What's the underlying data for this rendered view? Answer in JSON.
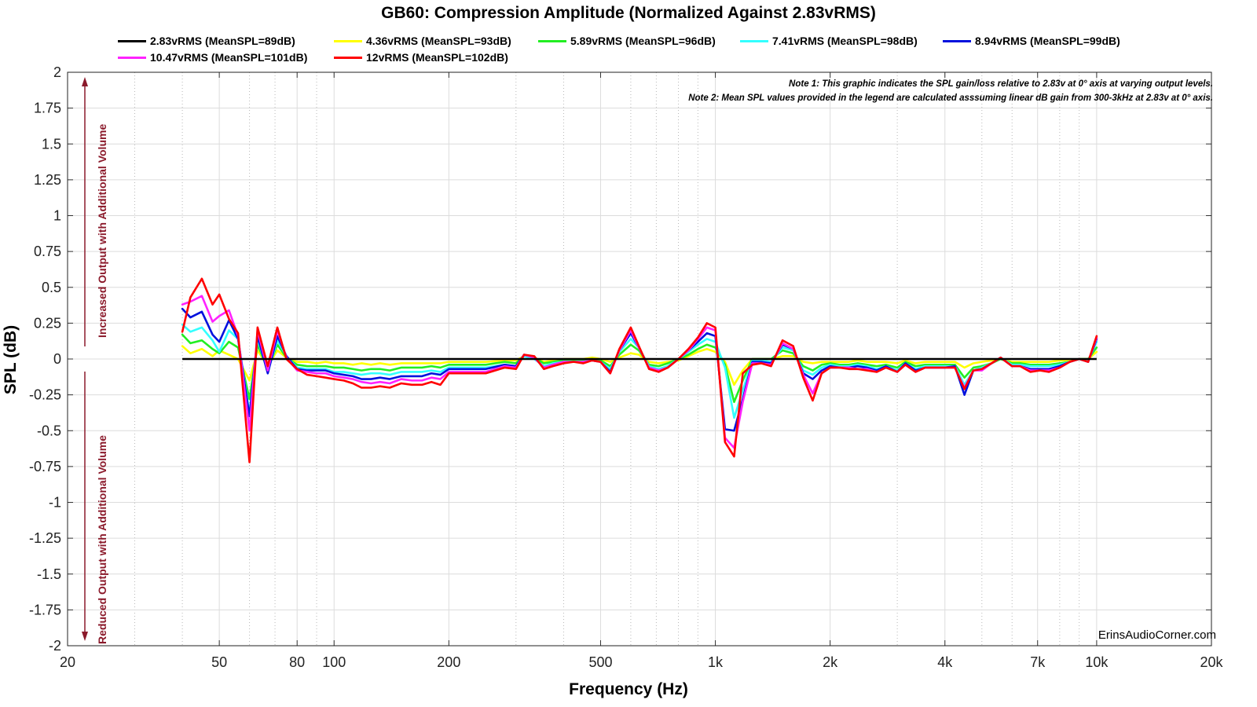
{
  "chart_data": {
    "type": "line",
    "title": "GB60: Compression Amplitude (Normalized Against 2.83vRMS)",
    "xlabel": "Frequency (Hz)",
    "ylabel": "SPL (dB)",
    "xscale": "log",
    "xlim": [
      20,
      20000
    ],
    "ylim": [
      -2,
      2
    ],
    "grid": true,
    "legend_position": "top",
    "xticks": [
      {
        "value": 20,
        "label": "20"
      },
      {
        "value": 50,
        "label": "50"
      },
      {
        "value": 80,
        "label": "80"
      },
      {
        "value": 100,
        "label": "100"
      },
      {
        "value": 200,
        "label": "200"
      },
      {
        "value": 500,
        "label": "500"
      },
      {
        "value": 1000,
        "label": "1k"
      },
      {
        "value": 2000,
        "label": "2k"
      },
      {
        "value": 4000,
        "label": "4k"
      },
      {
        "value": 7000,
        "label": "7k"
      },
      {
        "value": 10000,
        "label": "10k"
      },
      {
        "value": 20000,
        "label": "20k"
      }
    ],
    "yticks": [
      "2",
      "1.75",
      "1.5",
      "1.25",
      "1",
      "0.75",
      "0.5",
      "0.25",
      "0",
      "-0.25",
      "-0.5",
      "-0.75",
      "-1",
      "-1.25",
      "-1.5",
      "-1.75",
      "-2"
    ],
    "annotations": {
      "increased": "Increased Output with Additional Volume",
      "reduced": "Reduced Output with Additional Volume",
      "note1": "Note 1: This graphic indicates the SPL gain/loss relative to 2.83v at 0° axis at varying output levels.",
      "note2": "Note 2: Mean SPL values provided in the legend are calculated asssuming linear dB gain from 300-3kHz at 2.83v at 0° axis.",
      "watermark": "ErinsAudioCorner.com"
    },
    "x": [
      40,
      42,
      45,
      48,
      50,
      53,
      56,
      60,
      63,
      67,
      71,
      75,
      80,
      85,
      90,
      95,
      100,
      106,
      112,
      118,
      125,
      132,
      140,
      150,
      160,
      170,
      180,
      190,
      200,
      224,
      250,
      280,
      300,
      315,
      335,
      355,
      375,
      400,
      425,
      450,
      475,
      500,
      530,
      560,
      600,
      630,
      670,
      710,
      750,
      800,
      850,
      900,
      950,
      1000,
      1060,
      1120,
      1180,
      1250,
      1320,
      1400,
      1500,
      1600,
      1700,
      1800,
      1900,
      2000,
      2120,
      2240,
      2360,
      2500,
      2650,
      2800,
      3000,
      3150,
      3350,
      3550,
      3750,
      4000,
      4250,
      4500,
      4750,
      5000,
      5300,
      5600,
      6000,
      6300,
      6700,
      7100,
      7500,
      8000,
      8500,
      9000,
      9500,
      10000
    ],
    "series": [
      {
        "name": "2.83vRMS (MeanSPL=89dB)",
        "color": "#000000",
        "values": [
          0,
          0,
          0,
          0,
          0,
          0,
          0,
          0,
          0,
          0,
          0,
          0,
          0,
          0,
          0,
          0,
          0,
          0,
          0,
          0,
          0,
          0,
          0,
          0,
          0,
          0,
          0,
          0,
          0,
          0,
          0,
          0,
          0,
          0,
          0,
          0,
          0,
          0,
          0,
          0,
          0,
          0,
          0,
          0,
          0,
          0,
          0,
          0,
          0,
          0,
          0,
          0,
          0,
          0,
          0,
          0,
          0,
          0,
          0,
          0,
          0,
          0,
          0,
          0,
          0,
          0,
          0,
          0,
          0,
          0,
          0,
          0,
          0,
          0,
          0,
          0,
          0,
          0,
          0,
          0,
          0,
          0,
          0,
          0,
          0,
          0,
          0,
          0,
          0,
          0,
          0,
          0,
          0,
          0
        ]
      },
      {
        "name": "4.36vRMS (MeanSPL=93dB)",
        "color": "#ffff00",
        "values": [
          0.09,
          0.04,
          0.07,
          0.02,
          0.06,
          0.03,
          0.0,
          -0.15,
          0.06,
          -0.05,
          0.06,
          0.01,
          -0.02,
          -0.02,
          -0.03,
          -0.02,
          -0.03,
          -0.03,
          -0.04,
          -0.03,
          -0.04,
          -0.03,
          -0.04,
          -0.03,
          -0.03,
          -0.03,
          -0.03,
          -0.03,
          -0.02,
          -0.02,
          -0.02,
          -0.01,
          -0.01,
          0.02,
          0.01,
          -0.02,
          -0.01,
          0.0,
          0.0,
          0.0,
          0.01,
          0.0,
          -0.02,
          0.01,
          0.04,
          0.03,
          -0.02,
          -0.03,
          -0.02,
          -0.01,
          0.02,
          0.05,
          0.07,
          0.05,
          -0.02,
          -0.18,
          -0.08,
          0.0,
          0.0,
          0.0,
          0.02,
          0.02,
          -0.02,
          -0.03,
          -0.02,
          -0.02,
          -0.02,
          -0.02,
          -0.01,
          -0.02,
          -0.02,
          -0.02,
          -0.03,
          -0.01,
          -0.03,
          -0.02,
          -0.02,
          -0.02,
          -0.02,
          -0.06,
          -0.03,
          -0.02,
          -0.01,
          0.0,
          -0.02,
          -0.02,
          -0.02,
          -0.02,
          -0.02,
          -0.01,
          -0.01,
          0.0,
          0.0,
          0.05
        ]
      },
      {
        "name": "5.89vRMS (MeanSPL=96dB)",
        "color": "#22ee22",
        "values": [
          0.17,
          0.11,
          0.13,
          0.07,
          0.04,
          0.12,
          0.08,
          -0.28,
          0.1,
          -0.07,
          0.1,
          0.01,
          -0.04,
          -0.05,
          -0.05,
          -0.05,
          -0.06,
          -0.06,
          -0.07,
          -0.08,
          -0.07,
          -0.07,
          -0.08,
          -0.06,
          -0.06,
          -0.06,
          -0.05,
          -0.06,
          -0.04,
          -0.04,
          -0.04,
          -0.02,
          -0.03,
          0.02,
          0.01,
          -0.03,
          -0.02,
          -0.01,
          -0.01,
          -0.01,
          0.0,
          -0.01,
          -0.05,
          0.03,
          0.1,
          0.06,
          -0.04,
          -0.05,
          -0.03,
          0.0,
          0.03,
          0.07,
          0.1,
          0.08,
          -0.04,
          -0.3,
          -0.15,
          0.0,
          0.0,
          0.0,
          0.06,
          0.04,
          -0.05,
          -0.08,
          -0.04,
          -0.03,
          -0.04,
          -0.04,
          -0.03,
          -0.04,
          -0.05,
          -0.04,
          -0.06,
          -0.02,
          -0.05,
          -0.04,
          -0.04,
          -0.04,
          -0.04,
          -0.13,
          -0.06,
          -0.05,
          -0.03,
          0.0,
          -0.03,
          -0.03,
          -0.04,
          -0.04,
          -0.04,
          -0.03,
          -0.02,
          0.0,
          0.0,
          0.08
        ]
      },
      {
        "name": "7.41vRMS (MeanSPL=98dB)",
        "color": "#33ffff",
        "values": [
          0.24,
          0.19,
          0.22,
          0.13,
          0.05,
          0.2,
          0.14,
          -0.38,
          0.14,
          -0.09,
          0.13,
          0.02,
          -0.06,
          -0.07,
          -0.07,
          -0.07,
          -0.09,
          -0.09,
          -0.1,
          -0.11,
          -0.1,
          -0.1,
          -0.11,
          -0.09,
          -0.09,
          -0.09,
          -0.08,
          -0.09,
          -0.06,
          -0.06,
          -0.06,
          -0.04,
          -0.05,
          0.02,
          0.0,
          -0.05,
          -0.03,
          -0.02,
          -0.02,
          -0.02,
          -0.01,
          -0.02,
          -0.07,
          0.05,
          0.14,
          0.08,
          -0.05,
          -0.07,
          -0.05,
          0.0,
          0.05,
          0.1,
          0.14,
          0.12,
          -0.06,
          -0.41,
          -0.22,
          -0.01,
          -0.01,
          -0.02,
          0.08,
          0.06,
          -0.08,
          -0.11,
          -0.06,
          -0.04,
          -0.05,
          -0.05,
          -0.04,
          -0.05,
          -0.07,
          -0.05,
          -0.08,
          -0.03,
          -0.07,
          -0.05,
          -0.05,
          -0.05,
          -0.05,
          -0.18,
          -0.08,
          -0.06,
          -0.03,
          0.01,
          -0.04,
          -0.04,
          -0.05,
          -0.05,
          -0.05,
          -0.04,
          -0.02,
          0.0,
          -0.01,
          0.12
        ]
      },
      {
        "name": "8.94vRMS (MeanSPL=99dB)",
        "color": "#0011dd",
        "values": [
          0.35,
          0.29,
          0.33,
          0.17,
          0.12,
          0.27,
          0.14,
          -0.4,
          0.16,
          -0.1,
          0.16,
          0.02,
          -0.07,
          -0.08,
          -0.08,
          -0.08,
          -0.1,
          -0.11,
          -0.12,
          -0.14,
          -0.14,
          -0.13,
          -0.14,
          -0.12,
          -0.12,
          -0.12,
          -0.1,
          -0.11,
          -0.07,
          -0.07,
          -0.07,
          -0.04,
          -0.05,
          0.03,
          0.01,
          -0.06,
          -0.04,
          -0.02,
          -0.02,
          -0.02,
          -0.01,
          -0.02,
          -0.09,
          0.06,
          0.18,
          0.08,
          -0.06,
          -0.08,
          -0.06,
          0.0,
          0.06,
          0.12,
          0.18,
          0.16,
          -0.49,
          -0.5,
          -0.28,
          -0.02,
          -0.02,
          -0.03,
          0.1,
          0.07,
          -0.1,
          -0.14,
          -0.08,
          -0.05,
          -0.06,
          -0.06,
          -0.05,
          -0.06,
          -0.08,
          -0.05,
          -0.09,
          -0.03,
          -0.08,
          -0.06,
          -0.06,
          -0.06,
          -0.05,
          -0.25,
          -0.08,
          -0.07,
          -0.03,
          0.01,
          -0.05,
          -0.05,
          -0.07,
          -0.07,
          -0.07,
          -0.05,
          -0.02,
          0.0,
          -0.02,
          0.14
        ]
      },
      {
        "name": "10.47vRMS (MeanSPL=101dB)",
        "color": "#ff22ff",
        "values": [
          0.38,
          0.4,
          0.44,
          0.26,
          0.3,
          0.34,
          0.16,
          -0.5,
          0.2,
          -0.08,
          0.2,
          0.01,
          -0.08,
          -0.09,
          -0.1,
          -0.1,
          -0.12,
          -0.13,
          -0.14,
          -0.16,
          -0.17,
          -0.16,
          -0.17,
          -0.14,
          -0.15,
          -0.15,
          -0.13,
          -0.14,
          -0.09,
          -0.09,
          -0.09,
          -0.05,
          -0.06,
          0.03,
          0.01,
          -0.06,
          -0.04,
          -0.02,
          -0.02,
          -0.02,
          -0.01,
          -0.02,
          -0.1,
          0.06,
          0.2,
          0.08,
          -0.06,
          -0.08,
          -0.06,
          0.0,
          0.06,
          0.14,
          0.22,
          0.2,
          -0.55,
          -0.62,
          -0.3,
          -0.03,
          -0.03,
          -0.04,
          0.11,
          0.07,
          -0.11,
          -0.24,
          -0.1,
          -0.06,
          -0.06,
          -0.06,
          -0.07,
          -0.07,
          -0.09,
          -0.06,
          -0.09,
          -0.04,
          -0.09,
          -0.06,
          -0.06,
          -0.06,
          -0.06,
          -0.2,
          -0.08,
          -0.08,
          -0.03,
          0.01,
          -0.05,
          -0.05,
          -0.08,
          -0.08,
          -0.08,
          -0.06,
          -0.02,
          0.0,
          -0.02,
          0.15
        ]
      },
      {
        "name": "12vRMS (MeanSPL=102dB)",
        "color": "#ff0000",
        "values": [
          0.19,
          0.43,
          0.56,
          0.38,
          0.45,
          0.28,
          0.18,
          -0.72,
          0.22,
          -0.05,
          0.22,
          0.0,
          -0.07,
          -0.11,
          -0.12,
          -0.13,
          -0.14,
          -0.15,
          -0.17,
          -0.2,
          -0.2,
          -0.19,
          -0.2,
          -0.17,
          -0.18,
          -0.18,
          -0.16,
          -0.18,
          -0.1,
          -0.1,
          -0.1,
          -0.06,
          -0.07,
          0.03,
          0.02,
          -0.07,
          -0.05,
          -0.03,
          -0.02,
          -0.03,
          -0.01,
          -0.02,
          -0.1,
          0.07,
          0.22,
          0.09,
          -0.07,
          -0.09,
          -0.06,
          0.0,
          0.07,
          0.15,
          0.25,
          0.22,
          -0.58,
          -0.68,
          -0.1,
          -0.04,
          -0.03,
          -0.05,
          0.13,
          0.09,
          -0.13,
          -0.29,
          -0.1,
          -0.06,
          -0.06,
          -0.07,
          -0.07,
          -0.08,
          -0.09,
          -0.06,
          -0.09,
          -0.04,
          -0.09,
          -0.06,
          -0.06,
          -0.06,
          -0.06,
          -0.21,
          -0.08,
          -0.07,
          -0.03,
          0.01,
          -0.05,
          -0.05,
          -0.09,
          -0.08,
          -0.09,
          -0.06,
          -0.02,
          0.0,
          -0.02,
          0.16
        ]
      }
    ]
  }
}
